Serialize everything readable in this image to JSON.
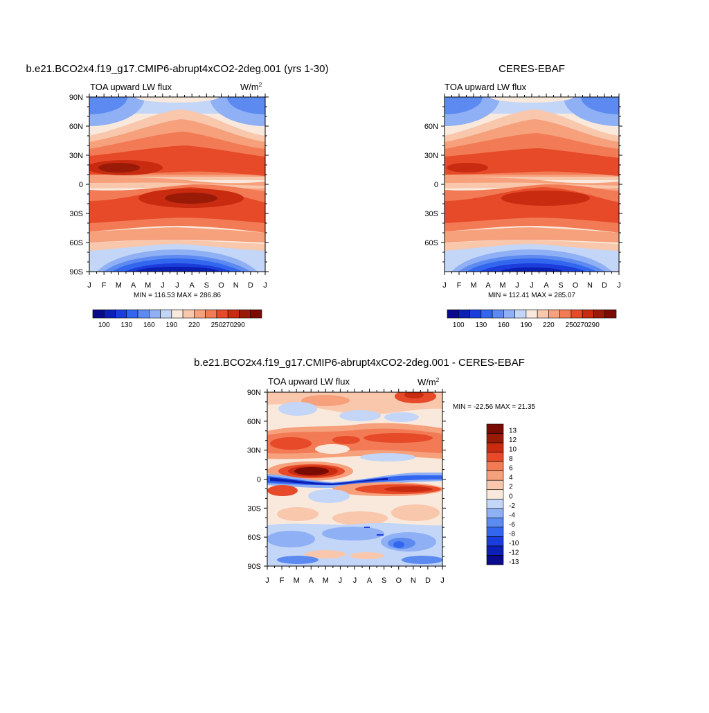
{
  "palette": [
    "#0a0a8c",
    "#0c1fb4",
    "#1a3ddb",
    "#3366ef",
    "#5c8af0",
    "#8fb0f5",
    "#c3d6f8",
    "#f9e9dc",
    "#f8c7ac",
    "#f6a07c",
    "#f27a55",
    "#e64a28",
    "#c92b10",
    "#9a1a08",
    "#7a0b03"
  ],
  "chart_data": [
    {
      "id": "model",
      "type": "heatmap",
      "title": "b.e21.BCO2x4.f19_g17.CMIP6-abrupt4xCO2-2deg.001 (yrs 1-30)",
      "subtitle": "TOA upward LW flux",
      "units_prefix": "W/m",
      "units_exp": "2",
      "x_ticks": [
        "J",
        "F",
        "M",
        "A",
        "M",
        "J",
        "J",
        "A",
        "S",
        "O",
        "N",
        "D",
        "J"
      ],
      "y_ticks": [
        "90N",
        "60N",
        "30N",
        "0",
        "30S",
        "60S",
        "90S"
      ],
      "y_tick_values": [
        90,
        60,
        30,
        0,
        -30,
        -60,
        -90
      ],
      "ylim": [
        -90,
        90
      ],
      "stats": "MIN = 116.53 MAX = 286.86",
      "colorbar": {
        "orientation": "horizontal",
        "levels": [
          100,
          110,
          120,
          130,
          140,
          150,
          160,
          170,
          180,
          190,
          200,
          220,
          230,
          250,
          260,
          270,
          280,
          290
        ],
        "labels": [
          "100",
          "130",
          "160",
          "190",
          "220",
          "250",
          "270",
          "290"
        ]
      }
    },
    {
      "id": "obs",
      "type": "heatmap",
      "title": "CERES-EBAF",
      "subtitle": "TOA upward LW flux",
      "x_ticks": [
        "J",
        "F",
        "M",
        "A",
        "M",
        "J",
        "J",
        "A",
        "S",
        "O",
        "N",
        "D",
        "J"
      ],
      "y_ticks": [
        "60N",
        "30N",
        "0",
        "30S",
        "60S"
      ],
      "y_tick_values": [
        60,
        30,
        0,
        -30,
        -60
      ],
      "ylim": [
        -90,
        90
      ],
      "stats": "MIN = 112.41 MAX = 285.07",
      "colorbar": {
        "orientation": "horizontal",
        "labels": [
          "100",
          "130",
          "160",
          "190",
          "220",
          "250",
          "270",
          "290"
        ]
      }
    },
    {
      "id": "diff",
      "type": "heatmap",
      "title": "b.e21.BCO2x4.f19_g17.CMIP6-abrupt4xCO2-2deg.001 - CERES-EBAF",
      "subtitle": "TOA upward LW flux",
      "units_prefix": "W/m",
      "units_exp": "2",
      "x_ticks": [
        "J",
        "F",
        "M",
        "A",
        "M",
        "J",
        "J",
        "A",
        "S",
        "O",
        "N",
        "D",
        "J"
      ],
      "y_ticks": [
        "90N",
        "60N",
        "30N",
        "0",
        "30S",
        "60S",
        "90S"
      ],
      "y_tick_values": [
        90,
        60,
        30,
        0,
        -30,
        -60,
        -90
      ],
      "ylim": [
        -90,
        90
      ],
      "stats": "MIN = -22.56 MAX =  21.35",
      "colorbar": {
        "orientation": "vertical",
        "labels": [
          "13",
          "12",
          "10",
          "8",
          "6",
          "4",
          "2",
          "0",
          "-2",
          "-4",
          "-6",
          "-8",
          "-10",
          "-12",
          "-13"
        ]
      }
    }
  ]
}
